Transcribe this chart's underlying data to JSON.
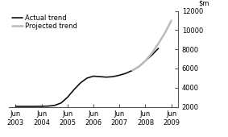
{
  "title": "",
  "actual_x": [
    2003,
    2003.33,
    2003.67,
    2004,
    2004.25,
    2004.5,
    2004.75,
    2005,
    2005.25,
    2005.5,
    2005.75,
    2006,
    2006.25,
    2006.5,
    2006.75,
    2007,
    2007.25,
    2007.5,
    2007.75,
    2008,
    2008.25,
    2008.5
  ],
  "actual_y": [
    2050,
    2050,
    2050,
    2060,
    2080,
    2150,
    2400,
    3000,
    3800,
    4500,
    5000,
    5200,
    5150,
    5100,
    5150,
    5300,
    5500,
    5800,
    6200,
    6800,
    7400,
    8100
  ],
  "projected_x": [
    2007.5,
    2007.75,
    2008,
    2008.25,
    2008.5,
    2008.75,
    2009
  ],
  "projected_y": [
    5800,
    6200,
    6800,
    7600,
    8600,
    9700,
    11000
  ],
  "actual_color": "#111111",
  "projected_color": "#bbbbbb",
  "actual_linewidth": 1.2,
  "projected_linewidth": 1.8,
  "ylim": [
    2000,
    12000
  ],
  "yticks": [
    2000,
    4000,
    6000,
    8000,
    10000,
    12000
  ],
  "xticks": [
    2003,
    2004,
    2005,
    2006,
    2007,
    2008,
    2009
  ],
  "x_labels": [
    "Jun\n2003",
    "Jun\n2004",
    "Jun\n2005",
    "Jun\n2006",
    "Jun\n2007",
    "Jun\n2008",
    "Jun\n2009"
  ],
  "legend_actual": "Actual trend",
  "legend_projected": "Projected trend",
  "bg_color": "#ffffff",
  "font_size": 6.0,
  "spine_color": "#555555"
}
